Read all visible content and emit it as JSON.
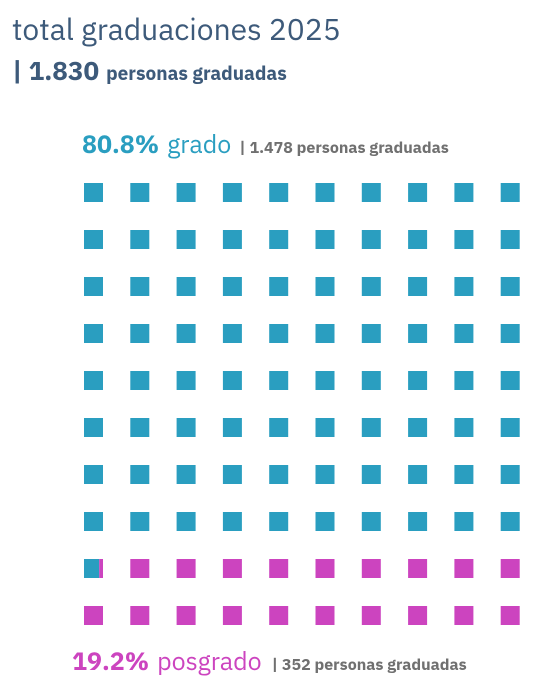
{
  "chart_data": {
    "type": "waffle",
    "title": "total graduaciones 2025",
    "subtitle_total": "1.830",
    "subtitle_text": "personas graduadas",
    "rows": 10,
    "columns": 10,
    "series": [
      {
        "name": "grado",
        "color": "#2a9ec0",
        "values": [
          80.8
        ],
        "value_labels": [
          "80.8%"
        ],
        "count_text": "1.478 personas graduadas"
      },
      {
        "name": "posgrado",
        "color": "#cc44bf",
        "values": [
          19.2
        ],
        "value_labels": [
          "19.2%"
        ],
        "count_text": "352 personas graduadas"
      }
    ]
  }
}
